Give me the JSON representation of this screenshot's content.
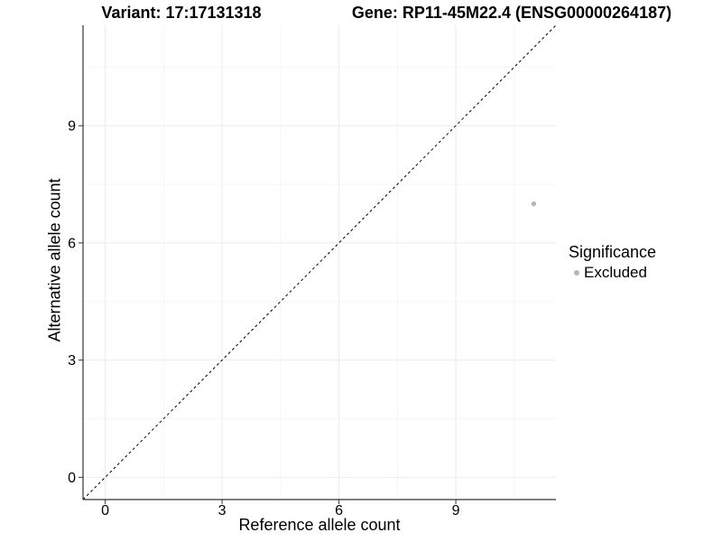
{
  "chart_data": {
    "type": "scatter",
    "title_left": "Variant: 17:17131318",
    "title_right": "Gene: RP11-45M22.4 (ENSG00000264187)",
    "xlabel": "Reference allele count",
    "ylabel": "Alternative allele count",
    "xlim": [
      -0.57,
      11.57
    ],
    "ylim": [
      -0.57,
      11.57
    ],
    "major_ticks": [
      0,
      3,
      6,
      9
    ],
    "minor_gridlines": [
      1.5,
      4.5,
      7.5,
      10.5
    ],
    "grid": true,
    "points": [
      {
        "x": 11,
        "y": 7,
        "significance": "Excluded"
      }
    ],
    "identity_line": {
      "style": "dashed",
      "equation": "y = x",
      "color": "#000000"
    },
    "legend": {
      "title": "Significance",
      "position": "right",
      "items": [
        {
          "label": "Excluded",
          "color": "#b5b5b5"
        }
      ]
    },
    "colors": {
      "point": "#b5b5b5",
      "grid_major": "#ebebeb",
      "grid_minor": "#f5f5f5",
      "axis_line": "#333333",
      "tick": "#333333",
      "text": "#000000"
    }
  }
}
